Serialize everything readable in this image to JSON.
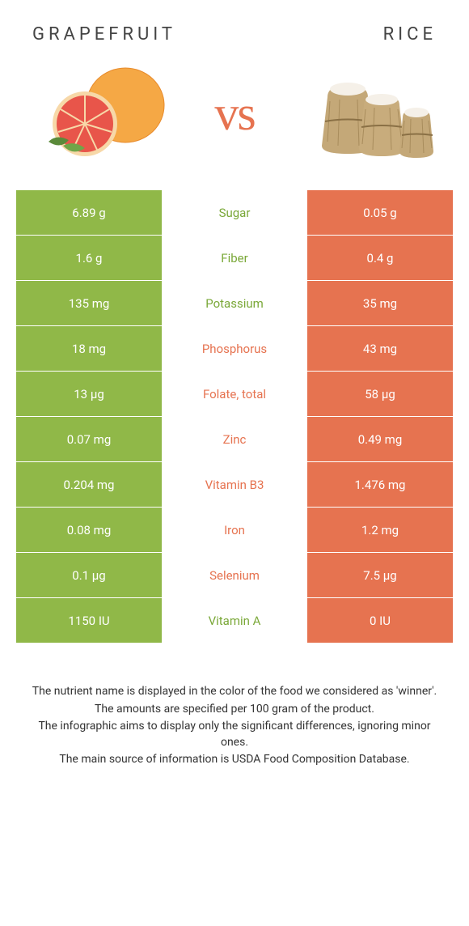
{
  "colors": {
    "grapefruit": "#90b848",
    "rice": "#e67350",
    "text_green": "#7aa838",
    "text_orange": "#e67350",
    "header_text": "#444444",
    "body_text": "#333333"
  },
  "header": {
    "left_title": "GRAPEFRUIT",
    "right_title": "RICE",
    "vs": "vs"
  },
  "rows": [
    {
      "left": "6.89 g",
      "label": "Sugar",
      "right": "0.05 g",
      "winner": "left"
    },
    {
      "left": "1.6 g",
      "label": "Fiber",
      "right": "0.4 g",
      "winner": "left"
    },
    {
      "left": "135 mg",
      "label": "Potassium",
      "right": "35 mg",
      "winner": "left"
    },
    {
      "left": "18 mg",
      "label": "Phosphorus",
      "right": "43 mg",
      "winner": "right"
    },
    {
      "left": "13 µg",
      "label": "Folate, total",
      "right": "58 µg",
      "winner": "right"
    },
    {
      "left": "0.07 mg",
      "label": "Zinc",
      "right": "0.49 mg",
      "winner": "right"
    },
    {
      "left": "0.204 mg",
      "label": "Vitamin B3",
      "right": "1.476 mg",
      "winner": "right"
    },
    {
      "left": "0.08 mg",
      "label": "Iron",
      "right": "1.2 mg",
      "winner": "right"
    },
    {
      "left": "0.1 µg",
      "label": "Selenium",
      "right": "7.5 µg",
      "winner": "right"
    },
    {
      "left": "1150 IU",
      "label": "Vitamin A",
      "right": "0 IU",
      "winner": "left"
    }
  ],
  "footer": {
    "line1": "The nutrient name is displayed in the color of the food we considered as 'winner'.",
    "line2": "The amounts are specified per 100 gram of the product.",
    "line3": "The infographic aims to display only the significant differences, ignoring minor ones.",
    "line4": "The main source of information is USDA Food Composition Database."
  }
}
